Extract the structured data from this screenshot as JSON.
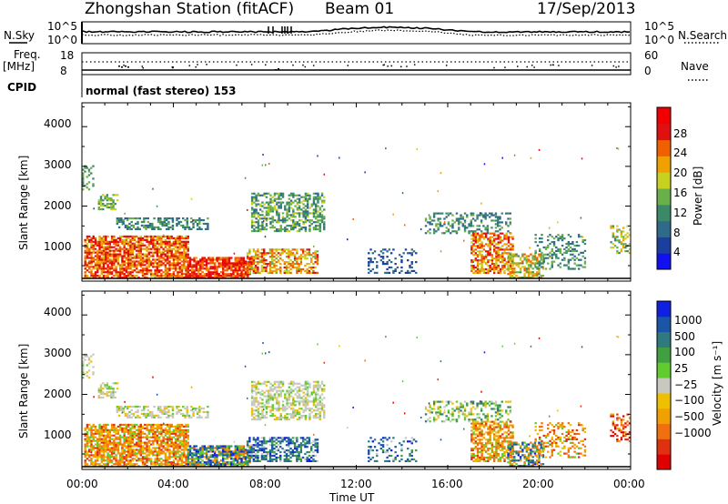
{
  "header": {
    "station": "Zhongshan Station (fitACF)",
    "beam": "Beam 01",
    "date": "17/Sep/2013"
  },
  "top_panels": {
    "nsky_label": "N.Sky",
    "nsky_ticks": [
      "10^5",
      "10^0"
    ],
    "nsearch_label": "N.Search",
    "nsearch_ticks": [
      "10^5",
      "10^0"
    ],
    "freq_label": "Freq.",
    "freq_unit": "[MHz]",
    "freq_ticks": [
      "18",
      "8"
    ],
    "nave_label": "Nave",
    "nave_ticks": [
      "60",
      "0"
    ],
    "cpid_label": "CPID",
    "cpid_text": "normal (fast stereo) 153"
  },
  "chart_data": [
    {
      "type": "heatmap",
      "name": "power",
      "ylabel": "Slant Range [km]",
      "yticks": [
        "4000",
        "3000",
        "2000",
        "1000"
      ],
      "ylim": [
        180,
        4600
      ],
      "xticks": [
        "00:00",
        "04:00",
        "08:00",
        "12:00",
        "16:00",
        "20:00",
        "00:00"
      ],
      "colorbar": {
        "label": "Power [dB]",
        "ticks": [
          "28",
          "24",
          "20",
          "16",
          "12",
          "8",
          "4"
        ],
        "colors": [
          "#1010f0",
          "#1a3f9e",
          "#2f6a8a",
          "#3a8a6a",
          "#6ab04a",
          "#c8d020",
          "#f0a000",
          "#f06000",
          "#e01010",
          "#f00000"
        ]
      }
    },
    {
      "type": "heatmap",
      "name": "velocity",
      "ylabel": "Slant Range [km]",
      "yticks": [
        "4000",
        "3000",
        "2000",
        "1000"
      ],
      "ylim": [
        180,
        4600
      ],
      "xticks": [
        "00:00",
        "04:00",
        "08:00",
        "12:00",
        "16:00",
        "20:00",
        "00:00"
      ],
      "xlabel": "Time UT",
      "colorbar": {
        "label": "Velocity [m s⁻¹]",
        "ticks": [
          "1000",
          "500",
          "100",
          "25",
          "−25",
          "−100",
          "−500",
          "−1000"
        ],
        "colors": [
          "#1020e0",
          "#1a55a8",
          "#2f7a80",
          "#40a040",
          "#60cc30",
          "#c8c8c0",
          "#f0c000",
          "#f0a000",
          "#f07010",
          "#e03010",
          "#e00000"
        ]
      }
    }
  ]
}
